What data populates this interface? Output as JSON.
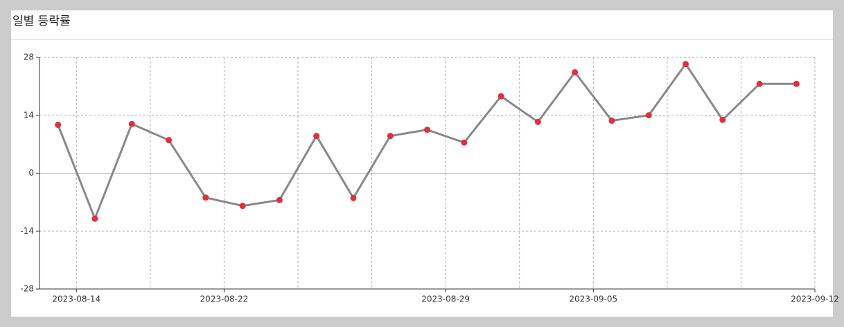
{
  "chart_data": {
    "type": "line",
    "title": "일별 등락률",
    "categories": [
      "2023-08-14",
      null,
      null,
      null,
      "2023-08-22",
      null,
      null,
      null,
      null,
      null,
      "2023-08-29",
      null,
      null,
      null,
      "2023-09-05",
      null,
      null,
      null,
      null,
      null,
      "2023-09-12"
    ],
    "series": [
      {
        "name": "등락률",
        "color": "#888888",
        "marker_color": "#e0303a",
        "values": [
          11.7,
          -11.0,
          11.9,
          8.0,
          -5.9,
          -7.9,
          -6.5,
          9.0,
          -6.0,
          9.0,
          10.5,
          7.4,
          18.6,
          12.4,
          24.4,
          12.7,
          14.0,
          26.4,
          12.9,
          21.6,
          21.6
        ]
      }
    ],
    "ylim": [
      -28,
      28
    ],
    "yticks": [
      -28,
      -14,
      0,
      14,
      28
    ],
    "grid": true
  }
}
